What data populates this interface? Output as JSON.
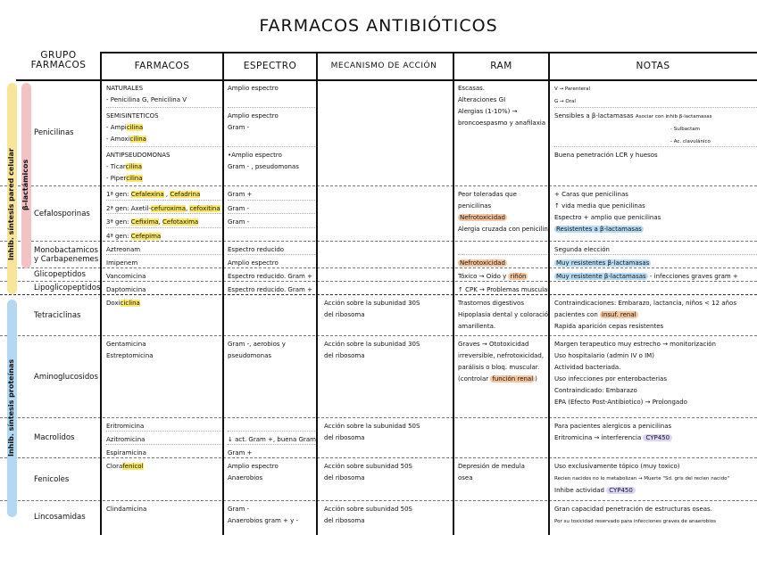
{
  "title": "FARMACOS ANTIBIÓTICOS",
  "headers": {
    "grupo": "GRUPO FARMACOS",
    "farmacos": "FARMACOS",
    "espectro": "ESPECTRO",
    "mecanismo": "MECANISMO DE ACCIÓN",
    "ram": "RAM",
    "notas": "NOTAS"
  },
  "categories": {
    "pared": {
      "label": "Inhib. síntesis pared celular",
      "color": "#f9e59a"
    },
    "betalactamicos": {
      "label": "β-lactámicos",
      "color": "#f2c2c4"
    },
    "proteinas": {
      "label": "Inhib. síntesis proteínas",
      "color": "#b5d8f2"
    }
  },
  "highlight_colors": {
    "yellow": "#fbe96a",
    "orange": "#f5c6a0",
    "blue": "#b9dcf5",
    "purple": "#ddd6fa"
  },
  "sections": [
    {
      "group": [
        "Penicilinas"
      ],
      "sub": [
        {
          "farmaco": [
            [
              "NATURALES"
            ],
            [
              "- Penicilina G, Penicilina V"
            ]
          ],
          "espectro": [
            [
              "Amplio espectro"
            ]
          ]
        },
        {
          "farmaco": [
            [
              "SEMISINTETICOS"
            ],
            [
              "- Ampi",
              {
                "y": "cilina"
              }
            ],
            [
              "- Amoxi",
              {
                "y": "cilina"
              }
            ]
          ],
          "espectro": [
            [
              "Amplio espectro"
            ],
            [
              "Gram -"
            ]
          ]
        },
        {
          "farmaco": [
            [
              "ANTIPSEUDOMONAS"
            ],
            [
              "- Ticar",
              {
                "y": "cilina"
              }
            ],
            [
              "- Piper",
              {
                "y": "cilina"
              }
            ]
          ],
          "espectro": [
            [
              "•Amplio espectro"
            ],
            [
              "Gram - , pseudomonas"
            ]
          ]
        }
      ],
      "mecanismo": [],
      "ram": [
        [
          [
            "Escasas."
          ],
          [
            "Alteraciones GI"
          ],
          [
            "Alergias (1-10%) →"
          ],
          [
            "broncoespasmo y anafilaxia"
          ]
        ]
      ],
      "notas": [
        [
          [
            {
              "sm": "V → Parenteral"
            }
          ],
          [
            {
              "sm": "G → Oral"
            }
          ]
        ],
        [
          [
            "Sensibles a β-lactamasas      ",
            {
              "sm": "Asociar con inhib β-lactamasas"
            }
          ],
          [
            {
              "sm": "- Sulbactam"
            }
          ],
          [
            {
              "sm": "- Ac. clavulánico"
            }
          ]
        ],
        [
          [
            "Buena penetración LCR y huesos"
          ]
        ]
      ]
    },
    {
      "group": [
        "Cefalosporinas"
      ],
      "sub": [
        {
          "farmaco": [
            [
              "1ª gen: ",
              {
                "y": "Cefalexina"
              },
              " , ",
              {
                "y": "Cefadrina"
              }
            ]
          ],
          "espectro": [
            [
              "Gram +"
            ]
          ]
        },
        {
          "farmaco": [
            [
              "2ª gen: Axetil-",
              {
                "y": "cefuroxima"
              },
              ", ",
              {
                "y": "cefoxitina"
              }
            ]
          ],
          "espectro": [
            [
              "Gram -"
            ]
          ]
        },
        {
          "farmaco": [
            [
              "3ª gen: ",
              {
                "y": "Cefixima"
              },
              ", ",
              {
                "y": "Cefotaxima"
              }
            ]
          ],
          "espectro": [
            [
              "Gram -"
            ]
          ]
        },
        {
          "farmaco": [
            [
              "4ª gen: ",
              {
                "y": "Cefepima"
              }
            ]
          ],
          "espectro": []
        }
      ],
      "mecanismo": [],
      "ram": [
        [
          [
            "Peor toleradas que"
          ],
          [
            "penicilinas"
          ],
          [
            {
              "o": "Nefrotoxicidad"
            }
          ],
          [
            "Alergia cruzada con penicilinas"
          ]
        ]
      ],
      "notas": [
        [
          [
            "+ Caras que penicilinas"
          ],
          [
            "↑ vida media que penicilinas"
          ],
          [
            "Espectro + amplio que penicilinas"
          ],
          [
            {
              "b": "Resistentes a β-lactamasas"
            }
          ]
        ]
      ]
    },
    {
      "group": [
        "Monobactamicos",
        "y Carbapenemes"
      ],
      "sub": [
        {
          "farmaco": [
            [
              "Aztreonam"
            ]
          ],
          "espectro": [
            [
              "Espectro reducido"
            ]
          ]
        },
        {
          "farmaco": [
            [
              "Imipenem"
            ]
          ],
          "espectro": [
            [
              "Amplio espectro"
            ]
          ]
        }
      ],
      "mecanismo": [],
      "ram": [
        [],
        [
          [
            {
              "o": "Nefrotoxicidad"
            }
          ]
        ]
      ],
      "notas": [
        [
          [
            "Segunda elección"
          ]
        ],
        [
          [
            {
              "b": "Muy resistentes β-lactamasas"
            }
          ]
        ]
      ]
    },
    {
      "group": [
        "Glicopeptidos"
      ],
      "sub": [
        {
          "farmaco": [
            [
              "Vancomicina"
            ]
          ],
          "espectro": [
            [
              "Espectro reducido. Gram +"
            ]
          ]
        }
      ],
      "mecanismo": [],
      "ram": [
        [
          [
            "Tóxico → Oído y ",
            {
              "o": "riñón"
            }
          ]
        ]
      ],
      "notas": [
        [
          [
            {
              "b": "Muy resistente β-lactamasas"
            },
            " - infecciones graves gram +"
          ]
        ]
      ]
    },
    {
      "group": [
        "Lipoglicopeptidos"
      ],
      "sub": [
        {
          "farmaco": [
            [
              "Daptomicina"
            ]
          ],
          "espectro": [
            [
              "Espectro reducido. Gram +"
            ]
          ]
        }
      ],
      "mecanismo": [],
      "ram": [
        [
          [
            "↑ CPK → Problemas musculares"
          ]
        ]
      ],
      "notas": [
        []
      ]
    },
    {
      "group": [
        "Tetraciclinas"
      ],
      "sub": [
        {
          "farmaco": [
            [
              "Doxi",
              {
                "y": "ciclina"
              }
            ]
          ],
          "espectro": []
        }
      ],
      "mecanismo": [
        [
          "Acción sobre la subunidad 30S"
        ],
        [
          "del ribosoma"
        ]
      ],
      "ram": [
        [
          [
            "Trastornos digestivos"
          ],
          [
            "Hipoplasia dental y coloración"
          ],
          [
            "amarillenta."
          ]
        ]
      ],
      "notas": [
        [
          [
            "Contraindicaciones: Embarazo, lactancia, niños < 12 años"
          ],
          [
            "pacientes con ",
            {
              "o": "insuf. renal"
            }
          ],
          [
            "Rapida aparición cepas resistentes"
          ]
        ]
      ]
    },
    {
      "group": [
        "Aminoglucosidos"
      ],
      "sub": [
        {
          "farmaco": [
            [
              "Gentamicina"
            ],
            [
              "Estreptomicina"
            ]
          ],
          "espectro": [
            [
              "Gram -, aerobios y"
            ],
            [
              "pseudomonas"
            ]
          ]
        }
      ],
      "mecanismo": [
        [
          "Acción sobre la subunidad 30S"
        ],
        [
          "del ribosoma"
        ]
      ],
      "ram": [
        [
          [
            "Graves → Ototoxicidad"
          ],
          [
            "irreversible, nefrotoxicidad,"
          ],
          [
            "parálisis o bloq. muscular."
          ],
          [
            "(controlar ",
            {
              "o": "función renal"
            },
            ")"
          ]
        ]
      ],
      "notas": [
        [
          [
            "Margen terapeutico muy estrecho → monitorización"
          ],
          [
            "Uso hospitalario (admin IV o IM)"
          ],
          [
            "Actividad bacteriada."
          ],
          [
            "Uso infecciones por enterobacterias"
          ],
          [
            "Contraindicado: Embarazo"
          ],
          [
            "EPA (Efecto Post-Antibiotico) → Prolongado"
          ]
        ]
      ]
    },
    {
      "group": [
        "Macrolidos"
      ],
      "sub": [
        {
          "farmaco": [
            [
              "Eritromicina"
            ]
          ],
          "espectro": []
        },
        {
          "farmaco": [
            [
              "Azitromicina"
            ]
          ],
          "espectro": [
            [
              "↓ act. Gram +, buena Gram -"
            ]
          ]
        },
        {
          "farmaco": [
            [
              "Espiramicina"
            ]
          ],
          "espectro": [
            [
              "Gram +"
            ]
          ]
        }
      ],
      "mecanismo": [
        [
          "Acción sobre la subunidad 50S"
        ],
        [
          "del ribosoma"
        ]
      ],
      "ram": [
        []
      ],
      "notas": [
        [
          [
            "Para pacientes alergicos a penicilinas"
          ],
          [
            "Eritromicina → interferencia ",
            {
              "p": "CYP450"
            }
          ]
        ]
      ]
    },
    {
      "group": [
        "Fenicoles"
      ],
      "sub": [
        {
          "farmaco": [
            [
              "Clora",
              {
                "y": "fenicol"
              }
            ]
          ],
          "espectro": [
            [
              "Amplio espectro"
            ],
            [
              "Anaerobios"
            ]
          ]
        }
      ],
      "mecanismo": [
        [
          "Acción sobre subunidad 50S"
        ],
        [
          "del ribosoma"
        ]
      ],
      "ram": [
        [
          [
            "Depresión de medula"
          ],
          [
            "osea"
          ]
        ]
      ],
      "notas": [
        [
          [
            "Uso exclusivamente tópico (muy toxico)"
          ],
          [
            {
              "sm": "Recien nacidos no lo metabolizan → Muerte \"Sd. gris del recien nacido\""
            }
          ],
          [
            "Inhibe actividad ",
            {
              "p": "CYP450"
            }
          ]
        ]
      ]
    },
    {
      "group": [
        "Lincosamidas"
      ],
      "sub": [
        {
          "farmaco": [
            [
              "Clindamicina"
            ]
          ],
          "espectro": [
            [
              "Gram -"
            ],
            [
              "Anaerobios gram + y -"
            ]
          ]
        }
      ],
      "mecanismo": [
        [
          "Acción sobre subunidad 50S"
        ],
        [
          "del ribosoma"
        ]
      ],
      "ram": [
        []
      ],
      "notas": [
        [
          [
            "Gran capacidad penetración de estructuras oseas."
          ],
          [
            {
              "sm": "Por su toxicidad reservado para infecciones graves de anaerobios"
            }
          ]
        ]
      ]
    }
  ]
}
